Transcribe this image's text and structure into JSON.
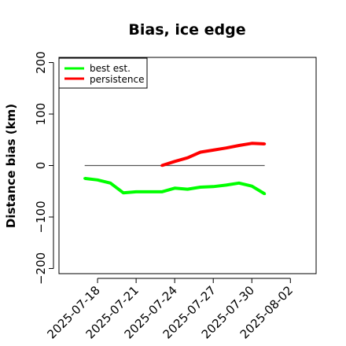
{
  "chart_data": {
    "type": "line",
    "title": "Bias, ice edge",
    "xlabel": "",
    "ylabel": "Distance bias (km)",
    "xlim": [
      "2025-07-15",
      "2025-08-04"
    ],
    "ylim": [
      -210,
      210
    ],
    "y_ticks": [
      200,
      100,
      0,
      -100,
      -200
    ],
    "x_ticks": [
      "2025-07-18",
      "2025-07-21",
      "2025-07-24",
      "2025-07-27",
      "2025-07-30",
      "2025-08-02"
    ],
    "grid": false,
    "legend_position": "top-left",
    "reference_line": {
      "y": 0,
      "x_start": "2025-07-17",
      "x_end": "2025-07-31",
      "color": "#555555"
    },
    "series": [
      {
        "name": "best est.",
        "color": "#00ff00",
        "x": [
          "2025-07-17",
          "2025-07-18",
          "2025-07-19",
          "2025-07-20",
          "2025-07-21",
          "2025-07-22",
          "2025-07-23",
          "2025-07-24",
          "2025-07-25",
          "2025-07-26",
          "2025-07-27",
          "2025-07-28",
          "2025-07-29",
          "2025-07-30",
          "2025-07-31"
        ],
        "values": [
          -25,
          -28,
          -34,
          -53,
          -51,
          -51,
          -51,
          -44,
          -46,
          -42,
          -41,
          -38,
          -34,
          -40,
          -55
        ]
      },
      {
        "name": "persistence",
        "color": "#ff0000",
        "x": [
          "2025-07-23",
          "2025-07-24",
          "2025-07-25",
          "2025-07-26",
          "2025-07-27",
          "2025-07-28",
          "2025-07-29",
          "2025-07-30",
          "2025-07-31"
        ],
        "values": [
          0,
          8,
          15,
          26,
          30,
          34,
          39,
          43,
          42
        ]
      }
    ]
  }
}
